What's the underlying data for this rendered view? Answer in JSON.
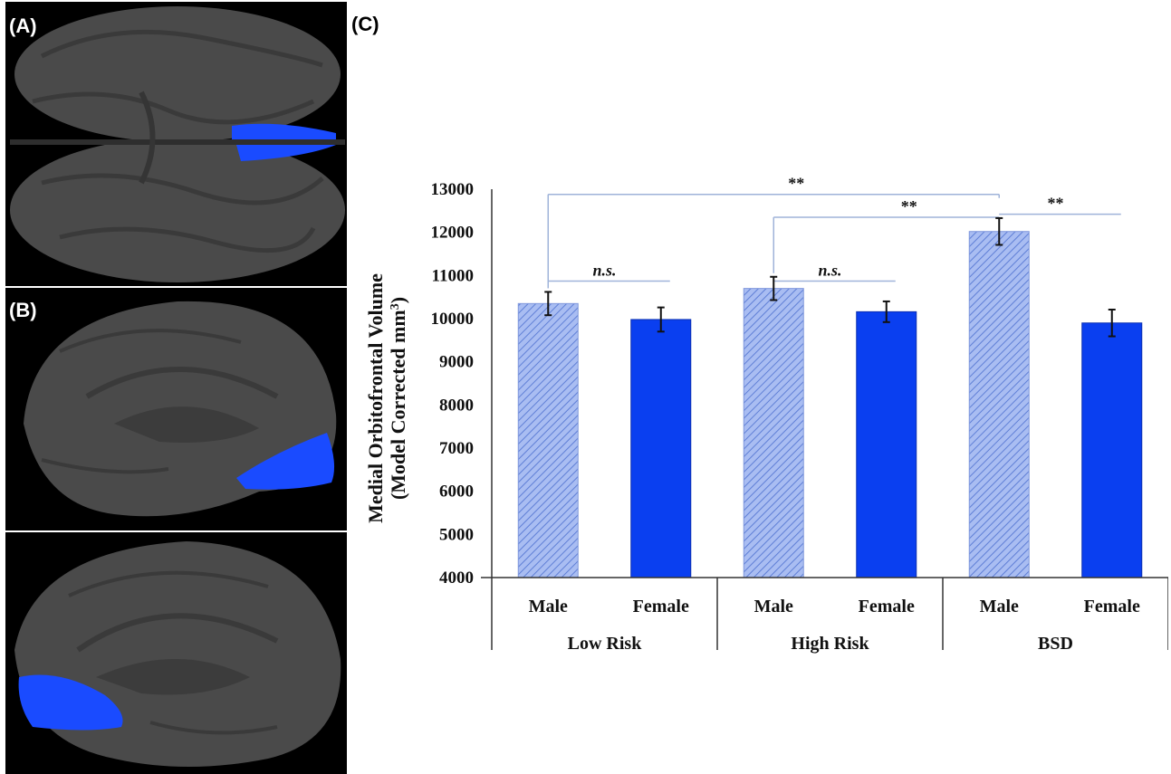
{
  "panels": {
    "a_label": "(A)",
    "b_label": "(B)",
    "c_label": "(C)"
  },
  "colors": {
    "background": "#000000",
    "cortex": "#4a4a4a",
    "highlight": "#1a4bff",
    "male_fill": "#a9bdf2",
    "male_hatch": "#5f7fd6",
    "female_fill": "#0a3ff0",
    "bracket": "#9fb3d9"
  },
  "chart_data": {
    "type": "bar",
    "ylabel_line1": "Medial Orbitofrontal Volume",
    "ylabel_line2": "(Model Corrected mm",
    "ylabel_sup": "3",
    "ylabel_close": ")",
    "ylim": [
      4000,
      13000
    ],
    "yticks": [
      "4000",
      "5000",
      "6000",
      "7000",
      "8000",
      "9000",
      "10000",
      "11000",
      "12000",
      "13000"
    ],
    "categories": [
      "Male",
      "Female",
      "Male",
      "Female",
      "Male",
      "Female"
    ],
    "groups": [
      "Low Risk",
      "High Risk",
      "BSD"
    ],
    "values": [
      10350,
      9980,
      10700,
      10160,
      12020,
      9900
    ],
    "errors": [
      270,
      280,
      270,
      240,
      310,
      310
    ],
    "bar_style": [
      "hatched",
      "solid",
      "hatched",
      "solid",
      "hatched",
      "solid"
    ],
    "significance": [
      {
        "label": "**",
        "from": 0,
        "to": 4,
        "y": 12880
      },
      {
        "label": "**",
        "from": 2,
        "to": 4,
        "y": 12350
      },
      {
        "label": "**",
        "from": 4,
        "to": 5,
        "y": 12420
      },
      {
        "label": "n.s.",
        "from": 0,
        "to": 1,
        "y": 10870
      },
      {
        "label": "n.s.",
        "from": 2,
        "to": 3,
        "y": 10870
      }
    ]
  }
}
